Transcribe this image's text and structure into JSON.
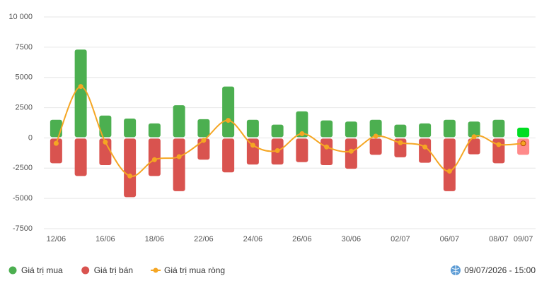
{
  "chart_data": {
    "type": "bar",
    "categories": [
      "12/06",
      null,
      "16/06",
      null,
      "18/06",
      null,
      "22/06",
      null,
      "24/06",
      null,
      "26/06",
      null,
      "30/06",
      null,
      "02/07",
      null,
      "06/07",
      null,
      "08/07",
      "09/07"
    ],
    "series": [
      {
        "name": "Giá trị mua",
        "type": "bar",
        "color": "#4caf50",
        "highlight_color": "#00dd22",
        "values": [
          1500,
          7300,
          1850,
          1600,
          1200,
          2700,
          1550,
          4250,
          1500,
          1100,
          2200,
          1450,
          1350,
          1500,
          1100,
          1200,
          1500,
          1350,
          1500,
          850
        ]
      },
      {
        "name": "Giá trị bán",
        "type": "bar",
        "color": "#d9534f",
        "highlight_color": "#ff8a8a",
        "values": [
          -2100,
          -3150,
          -2250,
          -4900,
          -3150,
          -4400,
          -1800,
          -2850,
          -2200,
          -2200,
          -2000,
          -2250,
          -2550,
          -1400,
          -1600,
          -2050,
          -4400,
          -1350,
          -2100,
          -1400
        ]
      },
      {
        "name": "Giá trị mua ròng",
        "type": "line",
        "color": "#f5a623",
        "values": [
          -450,
          4250,
          -350,
          -3150,
          -1800,
          -1550,
          -200,
          1450,
          -600,
          -1050,
          350,
          -750,
          -1100,
          150,
          -400,
          -750,
          -2750,
          100,
          -550,
          -450
        ]
      }
    ],
    "ylim": [
      -7500,
      10000
    ],
    "yticks": [
      {
        "value": 10000,
        "label": "10 000"
      },
      7500,
      5000,
      2500,
      0,
      -2500,
      -5000,
      -7500
    ],
    "grid": true,
    "timestamp": "09/07/2026 - 15:00"
  }
}
